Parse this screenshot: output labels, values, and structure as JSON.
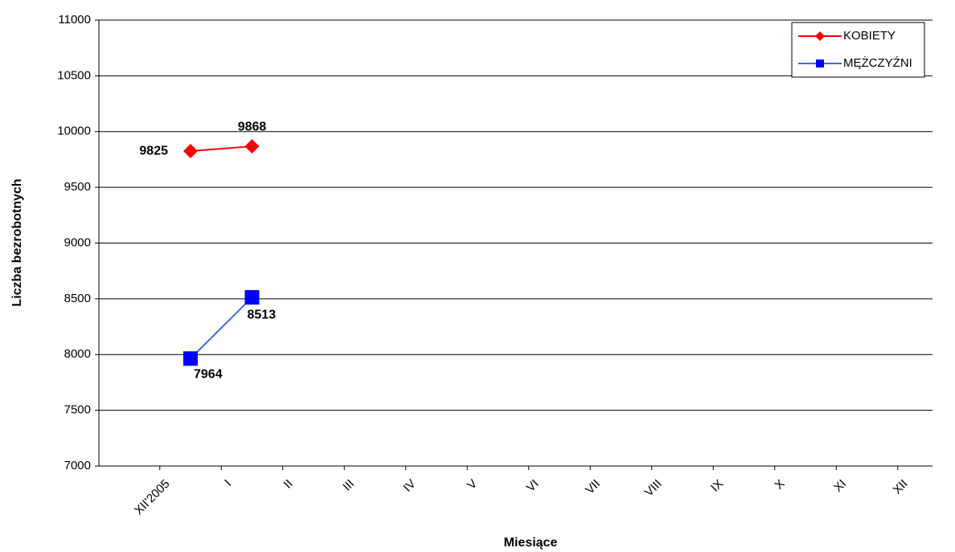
{
  "chart_data": {
    "type": "line",
    "x_label": "Miesiące",
    "y_label": "Liczba bezrobotnych",
    "categories": [
      "XII'2005",
      "I",
      "II",
      "III",
      "IV",
      "V",
      "VI",
      "VII",
      "VIII",
      "IX",
      "X",
      "XI",
      "XII"
    ],
    "series": [
      {
        "name": "KOBIETY",
        "color": "#ff0000",
        "marker": "diamond",
        "values": [
          9825,
          9868,
          null,
          null,
          null,
          null,
          null,
          null,
          null,
          null,
          null,
          null,
          null
        ]
      },
      {
        "name": "MĘŻCZYŹNI",
        "color": "#0000ff",
        "marker": "square",
        "values": [
          7964,
          8513,
          null,
          null,
          null,
          null,
          null,
          null,
          null,
          null,
          null,
          null,
          null
        ]
      }
    ],
    "ylim": [
      7000,
      11000
    ],
    "yticks": [
      7000,
      7500,
      8000,
      8500,
      9000,
      9500,
      10000,
      10500,
      11000
    ],
    "grid": true,
    "legend": "top-right"
  }
}
